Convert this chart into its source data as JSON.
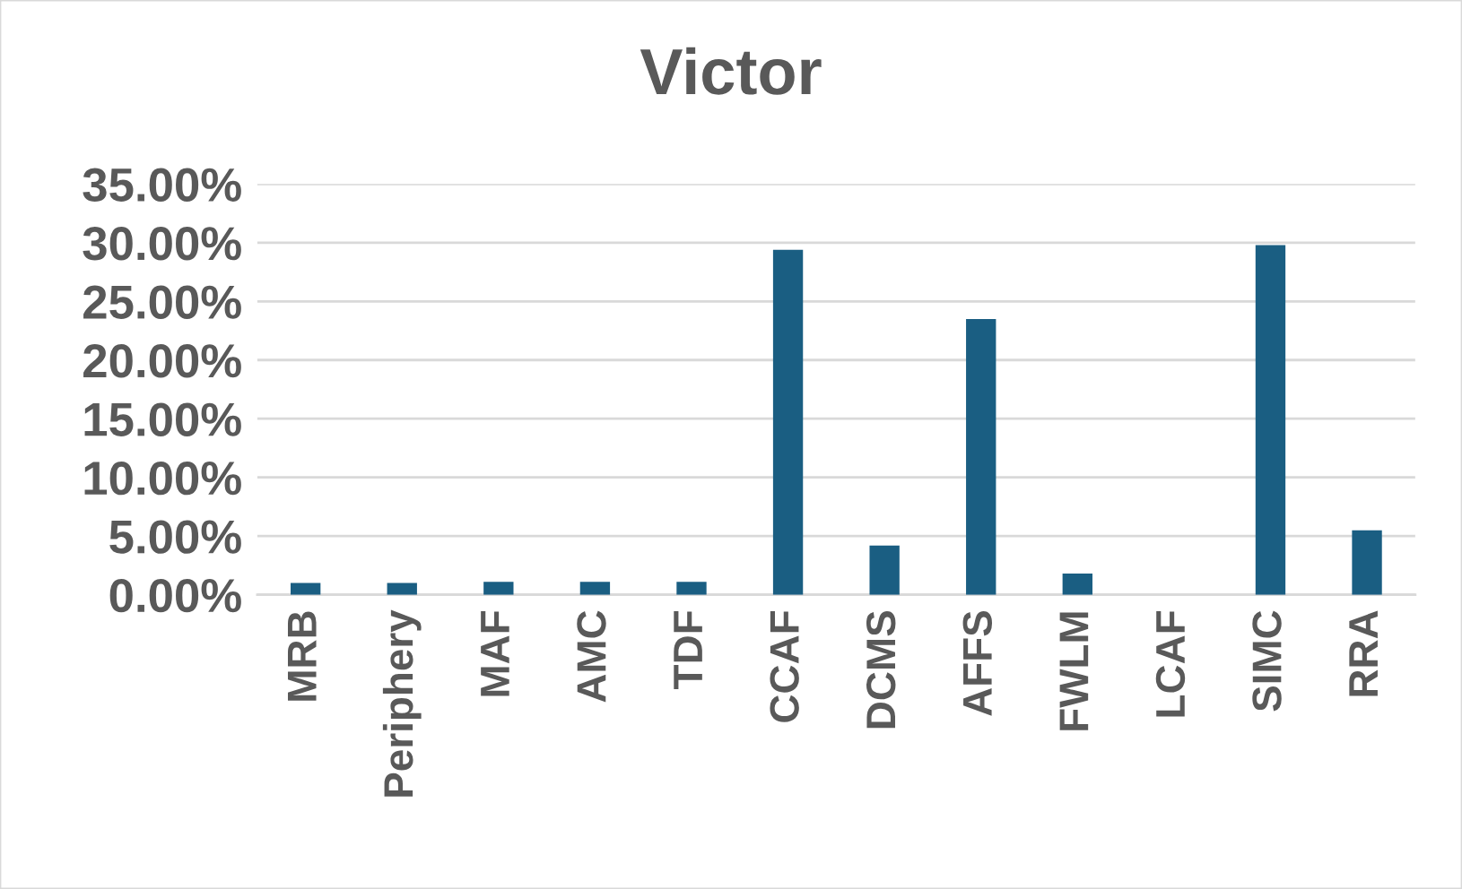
{
  "chart_data": {
    "type": "bar",
    "title": "Victor",
    "categories": [
      "MRB",
      "Periphery",
      "MAF",
      "AMC",
      "TDF",
      "CCAF",
      "DCMS",
      "AFFS",
      "FWLM",
      "LCAF",
      "SIMC",
      "RRA"
    ],
    "values": [
      1.0,
      1.0,
      1.1,
      1.1,
      1.1,
      29.4,
      4.2,
      23.5,
      1.8,
      0,
      29.8,
      5.5
    ],
    "color": "#1a5e82",
    "ylim": [
      0,
      35
    ],
    "yticks": [
      {
        "value": 0,
        "label": "0.00%"
      },
      {
        "value": 5,
        "label": "5.00%"
      },
      {
        "value": 10,
        "label": "10.00%"
      },
      {
        "value": 15,
        "label": "15.00%"
      },
      {
        "value": 20,
        "label": "20.00%"
      },
      {
        "value": 25,
        "label": "25.00%"
      },
      {
        "value": 30,
        "label": "30.00%"
      },
      {
        "value": 35,
        "label": "35.00%"
      }
    ],
    "grid": "y"
  }
}
